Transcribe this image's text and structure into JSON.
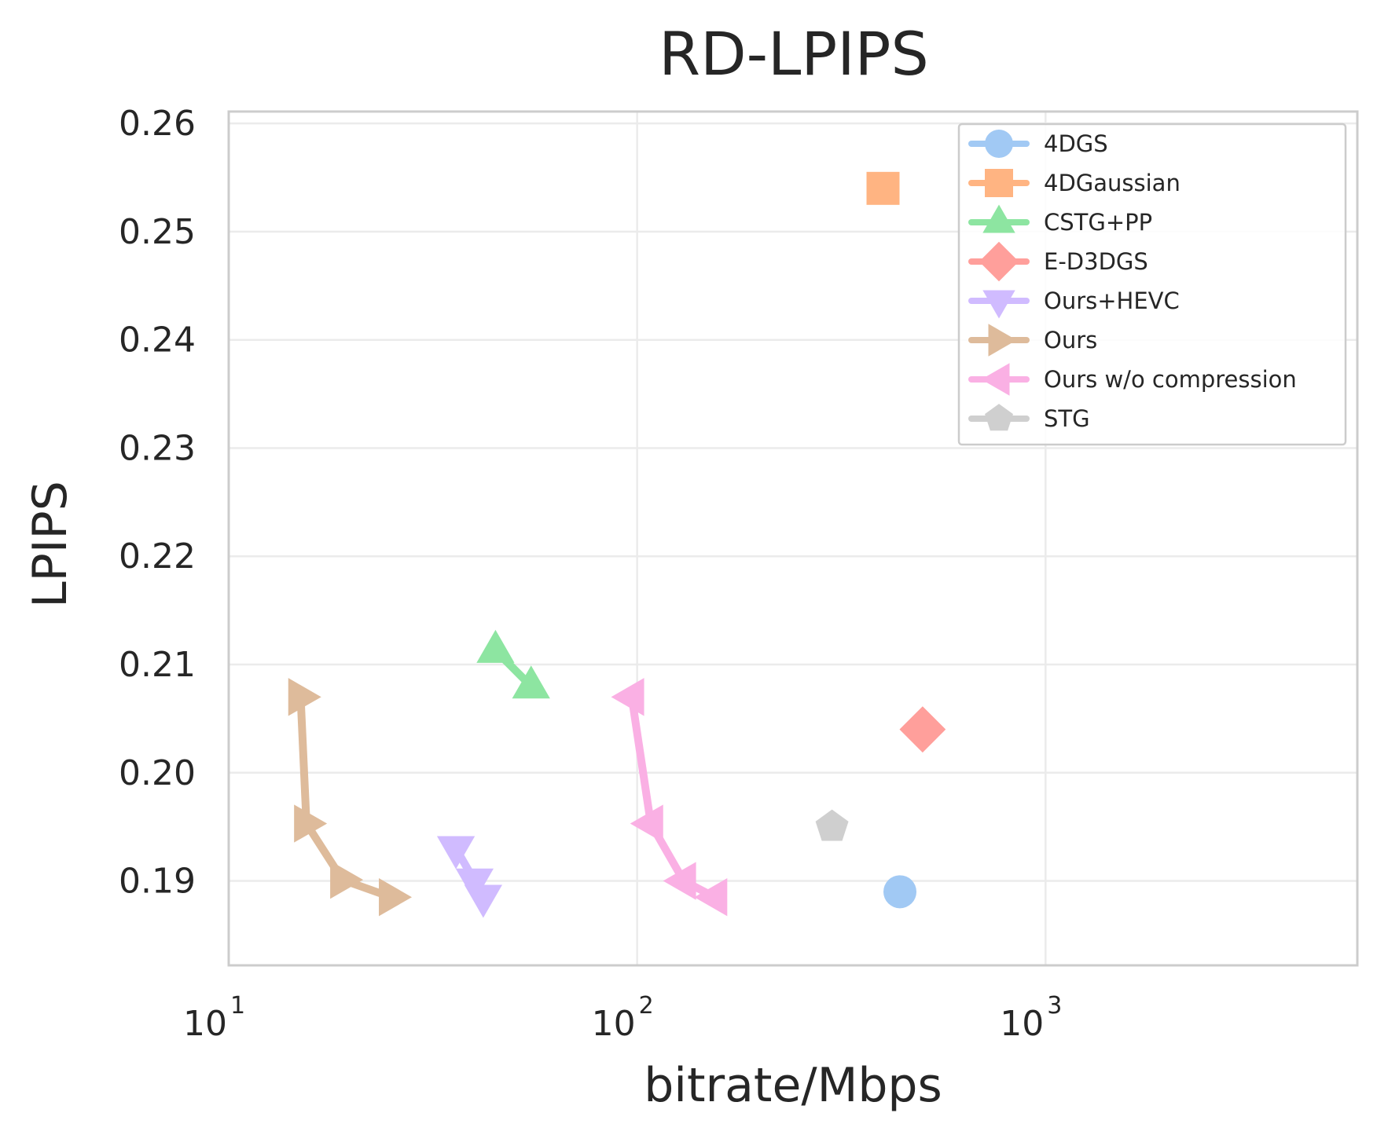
{
  "chart_data": {
    "type": "line",
    "title": "RD-LPIPS",
    "xlabel": "bitrate/Mbps",
    "ylabel": "LPIPS",
    "xscale": "log",
    "xlim": [
      10,
      5800
    ],
    "ylim": [
      0.1822,
      0.2611
    ],
    "xticks": [
      {
        "value": 10,
        "base": "10",
        "exp": "1"
      },
      {
        "value": 100,
        "base": "10",
        "exp": "2"
      },
      {
        "value": 1000,
        "base": "10",
        "exp": "3"
      }
    ],
    "yticks": [
      {
        "value": 0.19,
        "label": "0.19"
      },
      {
        "value": 0.2,
        "label": "0.20"
      },
      {
        "value": 0.21,
        "label": "0.21"
      },
      {
        "value": 0.22,
        "label": "0.22"
      },
      {
        "value": 0.23,
        "label": "0.23"
      },
      {
        "value": 0.24,
        "label": "0.24"
      },
      {
        "value": 0.25,
        "label": "0.25"
      },
      {
        "value": 0.26,
        "label": "0.26"
      }
    ],
    "grid": true,
    "legend_position": "top-right",
    "series": [
      {
        "name": "4DGS",
        "color": "#a1c9f4",
        "marker": "circle",
        "points": [
          [
            440,
            0.189
          ]
        ]
      },
      {
        "name": "4DGaussian",
        "color": "#ffb482",
        "marker": "square",
        "points": [
          [
            400,
            0.254
          ]
        ]
      },
      {
        "name": "CSTG+PP",
        "color": "#8de5a1",
        "marker": "triangle-up",
        "points": [
          [
            45,
            0.2113
          ],
          [
            55,
            0.208
          ]
        ]
      },
      {
        "name": "E-D3DGS",
        "color": "#ff9f9b",
        "marker": "diamond",
        "points": [
          [
            500,
            0.204
          ]
        ]
      },
      {
        "name": "Ours+HEVC",
        "color": "#d0bbff",
        "marker": "triangle-down",
        "points": [
          [
            36,
            0.193
          ],
          [
            40,
            0.19
          ],
          [
            42,
            0.1885
          ]
        ]
      },
      {
        "name": "Ours",
        "color": "#debb9b",
        "marker": "triangle-right",
        "points": [
          [
            15,
            0.207
          ],
          [
            15.5,
            0.1953
          ],
          [
            19,
            0.1901
          ],
          [
            25,
            0.1885
          ]
        ]
      },
      {
        "name": "Ours w/o compression",
        "color": "#fab0e4",
        "marker": "triangle-left",
        "points": [
          [
            97,
            0.207
          ],
          [
            108,
            0.1953
          ],
          [
            130,
            0.19
          ],
          [
            155,
            0.1885
          ]
        ]
      },
      {
        "name": "STG",
        "color": "#cfcfcf",
        "marker": "pentagon",
        "points": [
          [
            300,
            0.195
          ]
        ]
      }
    ]
  }
}
